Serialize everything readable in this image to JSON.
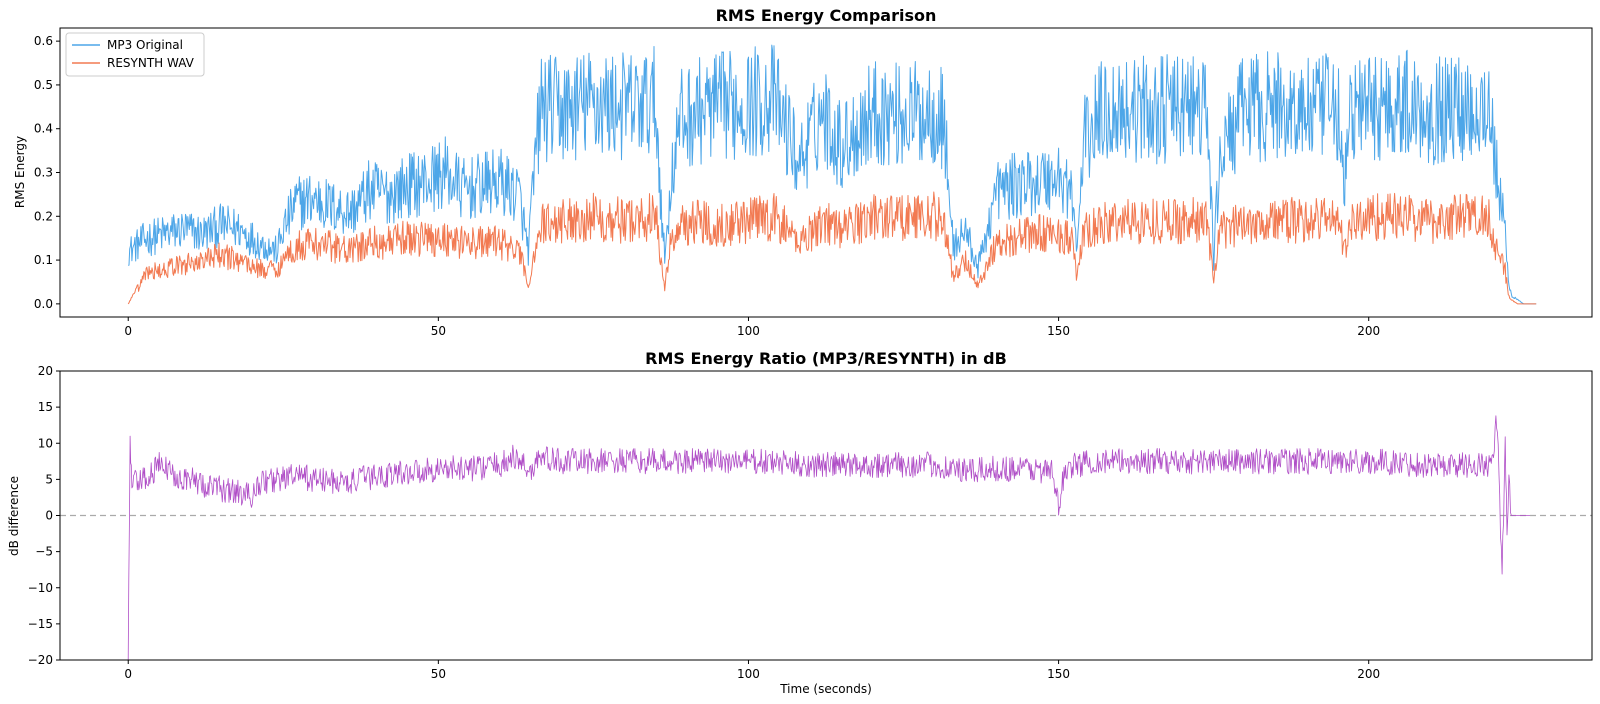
{
  "chart_data": [
    {
      "type": "line",
      "title": "RMS Energy Comparison",
      "xlabel": "",
      "ylabel": "RMS Energy",
      "xlim": [
        -11,
        236
      ],
      "ylim": [
        -0.03,
        0.63
      ],
      "x_ticks": [
        0,
        50,
        100,
        150,
        200
      ],
      "y_ticks": [
        0.0,
        0.1,
        0.2,
        0.3,
        0.4,
        0.5,
        0.6
      ],
      "y_tick_labels": [
        "0.0",
        "0.1",
        "0.2",
        "0.3",
        "0.4",
        "0.5",
        "0.6"
      ],
      "grid": false,
      "legend_position": "top-left",
      "series": [
        {
          "name": "MP3 Original",
          "color": "#4da6e8",
          "x": [
            0,
            3,
            6,
            9,
            12,
            15,
            18,
            21,
            24,
            25,
            27,
            30,
            33,
            36,
            39,
            42,
            45,
            48,
            51,
            54,
            57,
            60,
            63,
            64.5,
            65.5,
            66.5,
            70,
            75,
            80,
            85,
            86.5,
            87.5,
            89,
            92,
            95,
            100,
            104,
            107,
            108,
            112,
            115,
            120,
            125,
            130,
            131.5,
            133,
            135,
            137,
            140,
            143,
            146,
            150,
            152,
            153,
            154,
            157,
            160,
            165,
            170,
            174,
            175,
            176,
            180,
            185,
            190,
            195,
            196,
            197,
            200,
            205,
            210,
            215,
            219.5,
            221,
            222,
            222.5,
            223,
            224,
            225,
            226,
            227
          ],
          "y": [
            0.12,
            0.15,
            0.16,
            0.17,
            0.16,
            0.18,
            0.17,
            0.14,
            0.12,
            0.17,
            0.23,
            0.24,
            0.22,
            0.21,
            0.26,
            0.25,
            0.27,
            0.28,
            0.3,
            0.26,
            0.27,
            0.28,
            0.25,
            0.12,
            0.31,
            0.45,
            0.44,
            0.46,
            0.45,
            0.46,
            0.1,
            0.28,
            0.42,
            0.44,
            0.45,
            0.46,
            0.47,
            0.37,
            0.32,
            0.44,
            0.36,
            0.44,
            0.43,
            0.44,
            0.42,
            0.13,
            0.17,
            0.08,
            0.26,
            0.27,
            0.28,
            0.29,
            0.26,
            0.12,
            0.37,
            0.44,
            0.45,
            0.44,
            0.45,
            0.44,
            0.1,
            0.34,
            0.45,
            0.45,
            0.44,
            0.45,
            0.25,
            0.44,
            0.45,
            0.46,
            0.44,
            0.45,
            0.45,
            0.25,
            0.17,
            0.05,
            0.02,
            0.01,
            0.0,
            0.0,
            0.0
          ]
        },
        {
          "name": "RESYNTH WAV",
          "color": "#f27a52",
          "x": [
            0,
            3,
            6,
            9,
            12,
            15,
            18,
            21,
            24,
            25,
            27,
            30,
            33,
            36,
            39,
            42,
            45,
            48,
            51,
            54,
            57,
            60,
            63,
            64.5,
            65.5,
            66.5,
            70,
            75,
            80,
            85,
            86.5,
            87.5,
            89,
            92,
            95,
            100,
            104,
            107,
            108,
            112,
            115,
            120,
            125,
            130,
            131.5,
            133,
            135,
            137,
            140,
            143,
            146,
            150,
            152,
            153,
            154,
            157,
            160,
            165,
            170,
            174,
            175,
            176,
            180,
            185,
            190,
            195,
            196,
            197,
            200,
            205,
            210,
            215,
            219.5,
            221,
            222,
            222.5,
            223,
            224,
            225,
            226,
            227
          ],
          "y": [
            0.0,
            0.07,
            0.08,
            0.09,
            0.1,
            0.11,
            0.1,
            0.08,
            0.08,
            0.1,
            0.13,
            0.14,
            0.13,
            0.12,
            0.14,
            0.14,
            0.15,
            0.15,
            0.15,
            0.14,
            0.14,
            0.14,
            0.12,
            0.04,
            0.12,
            0.18,
            0.19,
            0.2,
            0.19,
            0.2,
            0.04,
            0.14,
            0.18,
            0.19,
            0.18,
            0.19,
            0.2,
            0.16,
            0.14,
            0.19,
            0.17,
            0.2,
            0.2,
            0.2,
            0.19,
            0.06,
            0.1,
            0.04,
            0.14,
            0.15,
            0.16,
            0.16,
            0.15,
            0.06,
            0.16,
            0.18,
            0.19,
            0.19,
            0.19,
            0.19,
            0.05,
            0.16,
            0.19,
            0.19,
            0.19,
            0.2,
            0.12,
            0.18,
            0.2,
            0.2,
            0.19,
            0.2,
            0.2,
            0.1,
            0.08,
            0.02,
            0.01,
            0.0,
            0.0,
            0.0,
            0.0
          ]
        }
      ]
    },
    {
      "type": "line",
      "title": "RMS Energy Ratio (MP3/RESYNTH) in dB",
      "xlabel": "Time (seconds)",
      "ylabel": "dB difference",
      "xlim": [
        -11,
        236
      ],
      "ylim": [
        -20,
        20
      ],
      "x_ticks": [
        0,
        50,
        100,
        150,
        200
      ],
      "y_ticks": [
        -20,
        -15,
        -10,
        -5,
        0,
        5,
        10,
        15,
        20
      ],
      "y_tick_labels": [
        "−20",
        "−15",
        "−10",
        "−5",
        "0",
        "5",
        "10",
        "15",
        "20"
      ],
      "grid": false,
      "reference_line": {
        "y": 0,
        "style": "dashed",
        "color": "#aaaaaa"
      },
      "series": [
        {
          "color": "#b04fc7",
          "x": [
            0,
            0.3,
            0.6,
            1,
            3,
            5,
            8,
            10,
            13,
            16,
            19,
            20,
            21,
            24,
            27,
            30,
            35,
            40,
            45,
            50,
            55,
            60,
            62,
            64,
            65,
            66,
            70,
            80,
            90,
            100,
            110,
            120,
            130,
            133,
            135,
            140,
            145,
            149,
            150,
            151,
            155,
            160,
            170,
            180,
            190,
            200,
            210,
            215,
            218,
            220,
            220.5,
            221,
            221.5,
            222,
            222.3,
            222.6,
            223,
            224,
            226
          ],
          "y": [
            -20,
            10.3,
            4,
            4.5,
            5,
            7,
            5.5,
            5,
            4,
            3.5,
            3,
            2.5,
            4.5,
            5,
            5.5,
            5,
            4.5,
            5.5,
            6,
            6.5,
            6.5,
            7,
            8,
            7,
            6,
            8,
            7.5,
            7.5,
            7.5,
            7.5,
            7,
            7,
            7,
            6.5,
            6,
            6.5,
            6.5,
            6,
            1,
            6.5,
            7.5,
            7.5,
            7.5,
            7.5,
            7.5,
            7.5,
            7,
            7,
            7,
            7,
            12.8,
            7,
            -9.5,
            11,
            -3,
            4,
            0,
            0,
            0
          ]
        }
      ]
    }
  ]
}
